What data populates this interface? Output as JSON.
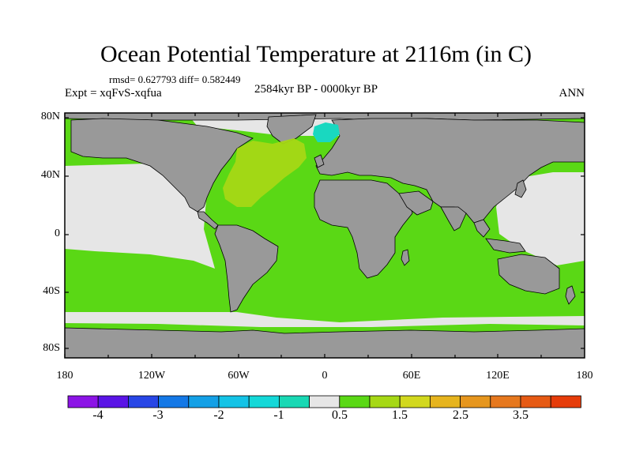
{
  "title": "Ocean Potential Temperature at 2116m (in C)",
  "stats_line": "rmsd= 0.627793 diff= 0.582449",
  "experiment": "Expt = xqFvS-xqfua",
  "period": "2584kyr BP - 0000kyr BP",
  "season": "ANN",
  "map": {
    "lat_labels": [
      "80N",
      "40N",
      "0",
      "40S",
      "80S"
    ],
    "lon_labels": [
      "180",
      "120W",
      "60W",
      "0",
      "60E",
      "120E",
      "180"
    ],
    "colors": {
      "land": "#999999",
      "missing_ocean": "#e6e6e6",
      "ocean_dominant": "#5ad815",
      "north_atlantic": "#a6d815",
      "nordic_seas": "#19d8c0"
    }
  },
  "colorbar": {
    "colors": [
      "#8c14e6",
      "#5a14e6",
      "#2846e6",
      "#1478e6",
      "#14a0e6",
      "#14c3e6",
      "#14d8d8",
      "#19d8b4",
      "#e6e6e6",
      "#5ad815",
      "#a6d815",
      "#d2d81e",
      "#e6b41e",
      "#e6961e",
      "#e6781e",
      "#e65a14",
      "#e63c0a"
    ],
    "labels": [
      "-4",
      "-3",
      "-2",
      "-1",
      "0.5",
      "1.5",
      "2.5",
      "3.5"
    ]
  }
}
